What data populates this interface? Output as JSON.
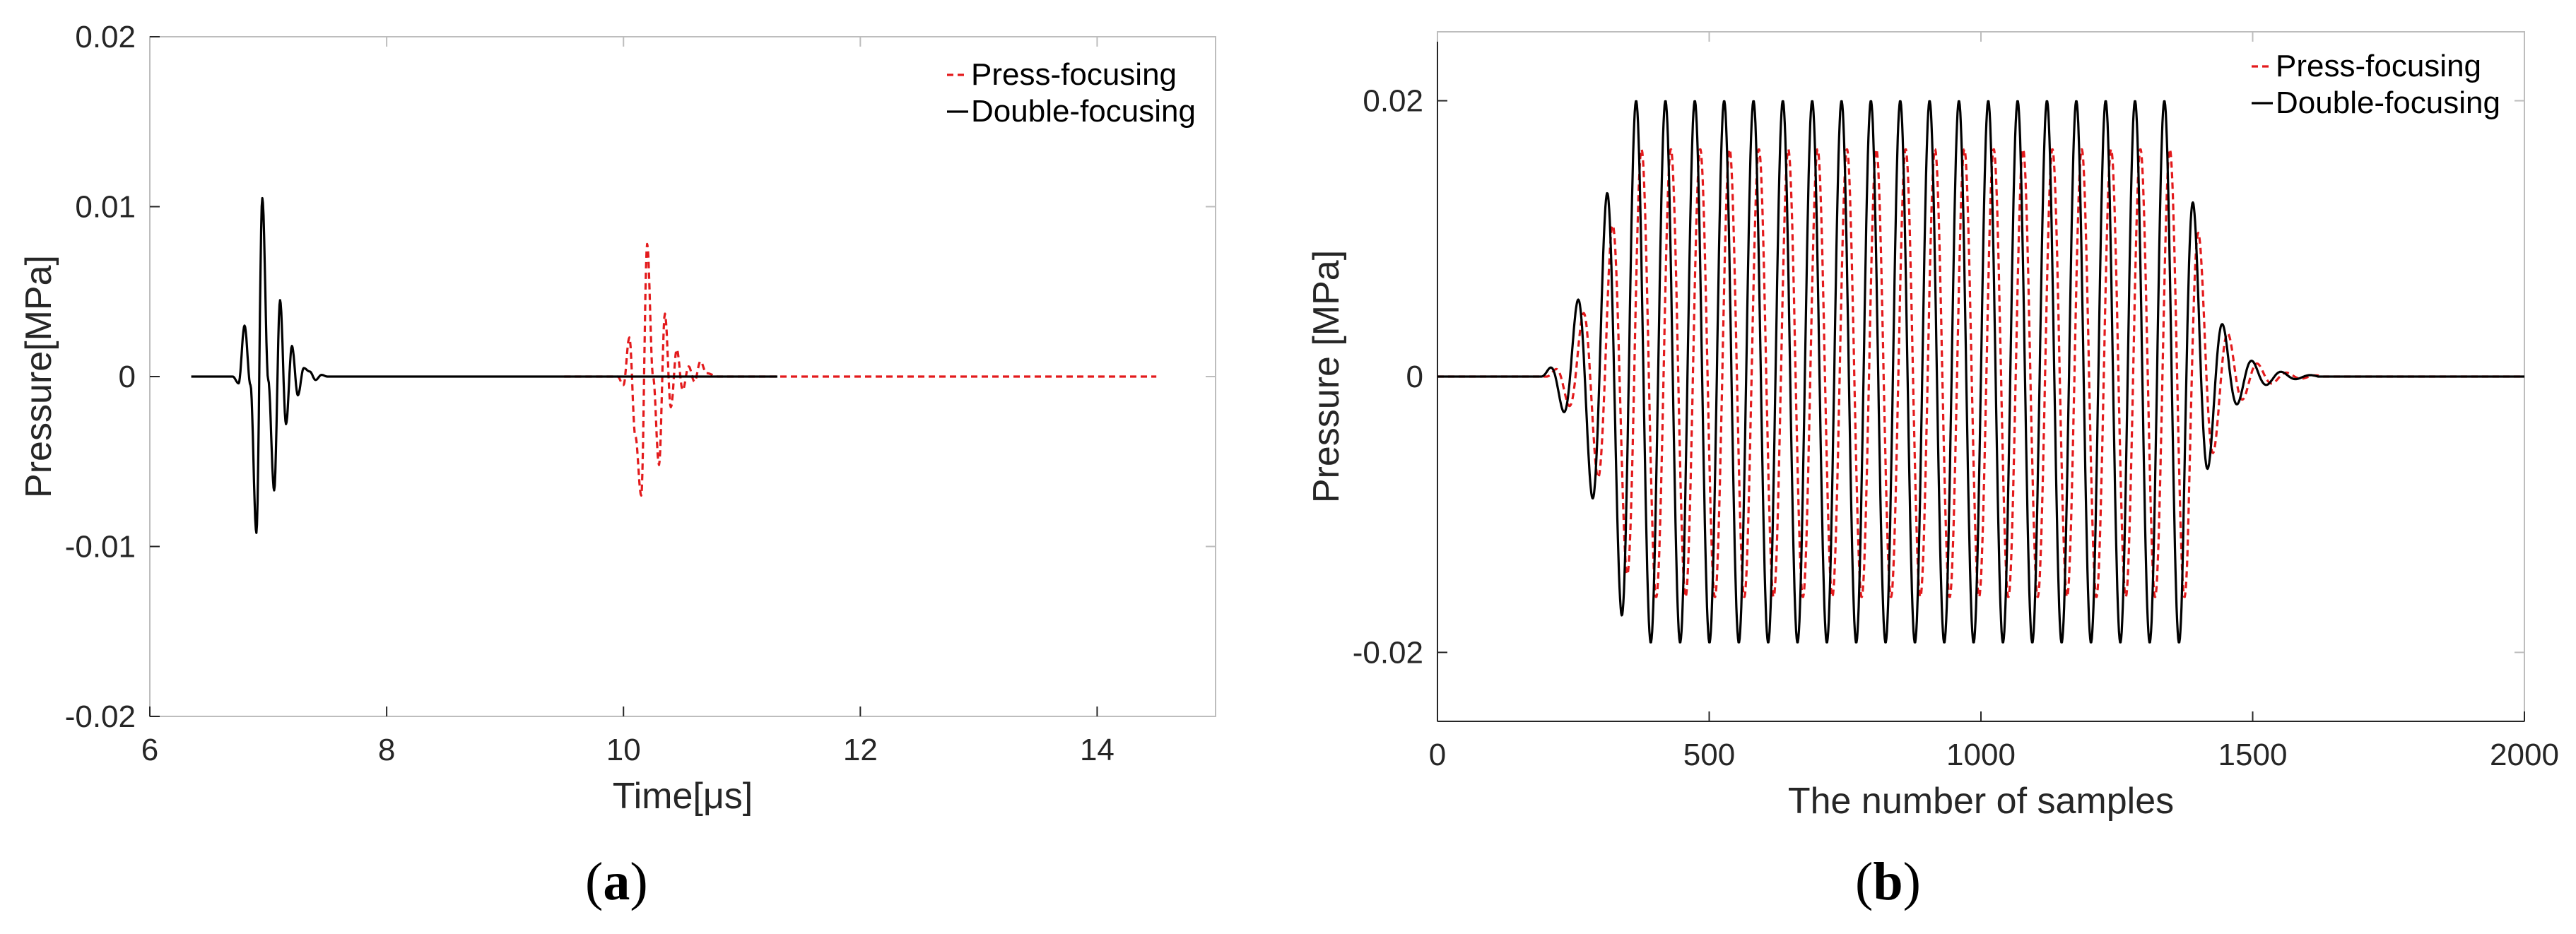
{
  "chart_data": [
    {
      "type": "line",
      "panel_label": "a",
      "xlabel": "Time[μs]",
      "ylabel": "Pressure[MPa]",
      "xlim": [
        6,
        15
      ],
      "ylim": [
        -0.02,
        0.02
      ],
      "xticks": [
        "6",
        "8",
        "10",
        "12",
        "14"
      ],
      "xtick_values": [
        6,
        8,
        10,
        12,
        14
      ],
      "yticks": [
        "-0.02",
        "-0.01",
        "0",
        "0.01",
        "0.02"
      ],
      "ytick_values": [
        -0.02,
        -0.01,
        0,
        0.01,
        0.02
      ],
      "grid": false,
      "legend_position": "top-right",
      "series": [
        {
          "name": "Press-focusing",
          "style": "dashed",
          "color": "#e31a1c",
          "x": [
            9.5,
            9.95,
            10.0,
            10.05,
            10.1,
            10.15,
            10.2,
            10.25,
            10.3,
            10.35,
            10.4,
            10.45,
            10.5,
            10.55,
            10.6,
            10.65,
            10.7,
            10.8,
            10.9,
            11.0,
            12.0,
            13.0,
            14.0,
            14.5
          ],
          "y": [
            0.0,
            0.0,
            -0.0005,
            0.0023,
            -0.0035,
            -0.007,
            0.0078,
            0.0,
            -0.0052,
            0.0037,
            -0.0018,
            0.0016,
            -0.0008,
            0.0006,
            -0.0003,
            0.0009,
            0.0002,
            0.0,
            0.0,
            0.0,
            0.0,
            0.0,
            0.0,
            0.0
          ]
        },
        {
          "name": "Double-focusing",
          "style": "solid",
          "color": "#000000",
          "x": [
            6.35,
            6.7,
            6.75,
            6.8,
            6.85,
            6.9,
            6.95,
            7.0,
            7.05,
            7.1,
            7.15,
            7.2,
            7.25,
            7.3,
            7.35,
            7.4,
            7.45,
            7.5,
            7.6,
            8.0,
            9.0,
            10.0,
            10.5,
            11.0,
            11.3
          ],
          "y": [
            0.0,
            0.0,
            -0.0004,
            0.003,
            -0.0005,
            -0.0092,
            0.0105,
            -0.0002,
            -0.0067,
            0.0045,
            -0.0028,
            0.0018,
            -0.0011,
            0.0005,
            0.0003,
            -0.0002,
            0.0001,
            0.0,
            0.0,
            0.0,
            0.0,
            0.0,
            0.0,
            0.0,
            0.0
          ]
        }
      ]
    },
    {
      "type": "line",
      "panel_label": "b",
      "xlabel": "The number of samples",
      "ylabel": "Pressure [MPa]",
      "xlim": [
        0,
        2000
      ],
      "ylim": [
        -0.025,
        0.025
      ],
      "xticks": [
        "0",
        "500",
        "1000",
        "1500",
        "2000"
      ],
      "xtick_values": [
        0,
        500,
        1000,
        1500,
        2000
      ],
      "yticks": [
        "-0.02",
        "0",
        "0.02"
      ],
      "ytick_values": [
        -0.02,
        0,
        0.02
      ],
      "grid": false,
      "legend_position": "top-right",
      "signal_model": {
        "period_samples": 54,
        "onset_sample": 190,
        "end_sample": 1370,
        "tail_end_sample": 1620
      },
      "series": [
        {
          "name": "Press-focusing",
          "style": "dashed",
          "color": "#e31a1c",
          "peak_positive": 0.0165,
          "peak_negative": -0.016,
          "lag_samples": 10
        },
        {
          "name": "Double-focusing",
          "style": "solid",
          "color": "#000000",
          "peak_positive": 0.02,
          "peak_negative": -0.0193,
          "lag_samples": 0
        }
      ]
    }
  ]
}
